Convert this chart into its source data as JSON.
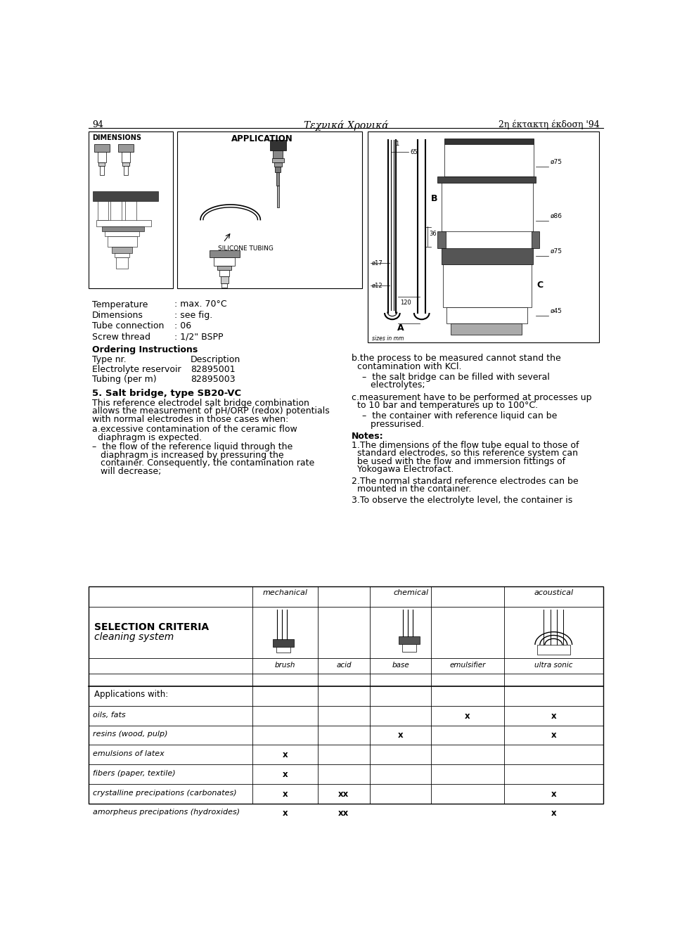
{
  "page_number": "94",
  "header_center": "Τεχνικά Χρονικά",
  "header_right": "2η έκτακτη έκδοση '94",
  "bg_color": "#ffffff",
  "specs": [
    {
      "label": "Temperature",
      "value": ": max. 70°C"
    },
    {
      "label": "Dimensions",
      "value": ": see fig."
    },
    {
      "label": "Tube connection",
      "value": ": 06"
    },
    {
      "label": "Screw thread",
      "value": ": 1/2\" BSPP"
    }
  ],
  "ordering_title": "Ordering Instructions",
  "ordering_headers": [
    "Type nr.",
    "Description"
  ],
  "ordering_rows": [
    [
      "Electrolyte reservoir",
      "82895001"
    ],
    [
      "Tubing (per m)",
      "82895003"
    ]
  ],
  "section_title": "5. Salt bridge, type SB20-VC",
  "section_intro_lines": [
    "This reference electrodel salt bridge combination",
    "allows the measurement of pH/ORP (redox) potentials",
    "with normal electrodes in those cases when:"
  ],
  "item_a_lines": [
    "a.excessive contamination of the ceramic flow",
    "  diaphragm is expected."
  ],
  "item_a_bullet_lines": [
    "–  the flow of the reference liquid through the",
    "   diaphragm is increased by pressuring the",
    "   container. Consequently, the contamination rate",
    "   will decrease;"
  ],
  "right_col_b_lines": [
    "b.the process to be measured cannot stand the",
    "  contamination with KCl."
  ],
  "right_col_b_bullet_lines": [
    "–  the salt bridge can be filled with several",
    "   electrolytes;"
  ],
  "right_col_c_lines": [
    "c.measurement have to be performed at processes up",
    "  to 10 bar and temperatures up to 100°C."
  ],
  "right_col_c_bullet_lines": [
    "–  the container with reference liquid can be",
    "   pressurised."
  ],
  "notes_title": "Notes:",
  "note1_lines": [
    "1.The dimensions of the flow tube equal to those of",
    "  standard electrodes, so this reference system can",
    "  be used with the flow and immersion fittings of",
    "  Yokogawa Electrofact."
  ],
  "note2_lines": [
    "2.The normal standard reference electrodes can be",
    "  mounted in the container."
  ],
  "note3_lines": [
    "3.To observe the electrolyte level, the container is"
  ],
  "table_title1": "SELECTION CRITERIA",
  "table_title2": "cleaning system",
  "table_col_headers": [
    "mechanical",
    "chemical",
    "acoustical"
  ],
  "table_sub_headers": [
    "brush",
    "acid",
    "base",
    "emulsifier",
    "ultra sonic"
  ],
  "table_row_label_header": "Applications with:",
  "table_rows": [
    {
      "label": "oils, fats",
      "brush": "",
      "acid": "",
      "base": "",
      "emulsifier": "x",
      "ultra_sonic": "x"
    },
    {
      "label": "resins (wood, pulp)",
      "brush": "",
      "acid": "",
      "base": "x",
      "emulsifier": "",
      "ultra_sonic": "x"
    },
    {
      "label": "emulsions of latex",
      "brush": "x",
      "acid": "",
      "base": "",
      "emulsifier": "",
      "ultra_sonic": ""
    },
    {
      "label": "fibers (paper, textile)",
      "brush": "x",
      "acid": "",
      "base": "",
      "emulsifier": "",
      "ultra_sonic": ""
    },
    {
      "label": "crystalline precipations (carbonates)",
      "brush": "x",
      "acid": "xx",
      "base": "",
      "emulsifier": "",
      "ultra_sonic": "x"
    },
    {
      "label": "amorpheus precipations (hydroxides)",
      "brush": "x",
      "acid": "xx",
      "base": "",
      "emulsifier": "",
      "ultra_sonic": "x"
    }
  ]
}
